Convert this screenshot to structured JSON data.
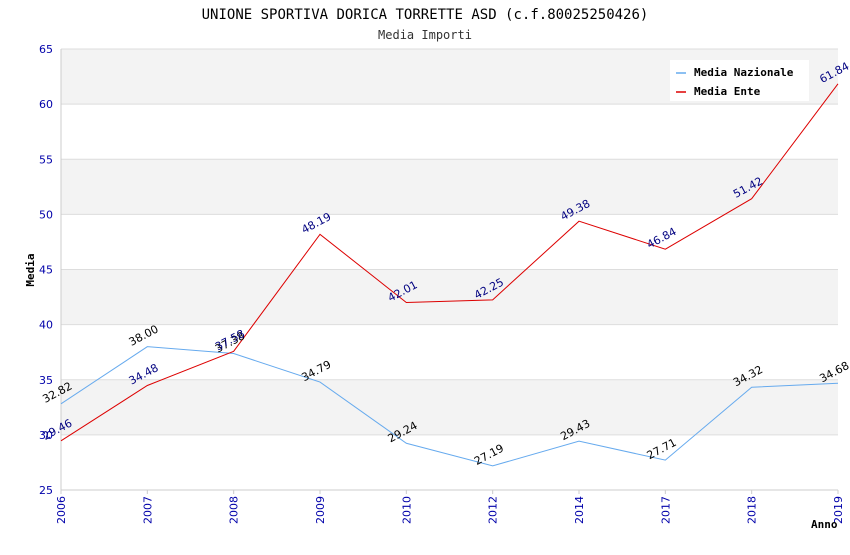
{
  "chart_data": {
    "type": "line",
    "title": "UNIONE SPORTIVA DORICA TORRETTE ASD (c.f.80025250426)",
    "subtitle": "Media Importi",
    "xlabel": "Anno",
    "ylabel": "Media",
    "ylim": [
      25,
      65
    ],
    "yticks": [
      "25",
      "30",
      "35",
      "40",
      "45",
      "50",
      "55",
      "60",
      "65"
    ],
    "categories": [
      "2006",
      "2007",
      "2008",
      "2009",
      "2010",
      "2012",
      "2014",
      "2017",
      "2018",
      "2019"
    ],
    "grid": true,
    "legend_position": "top-right",
    "series": [
      {
        "name": "Media Nazionale",
        "color": "#66aaee",
        "label_color": "#000000",
        "values": [
          32.82,
          38.0,
          37.38,
          34.79,
          29.24,
          27.19,
          29.43,
          27.71,
          34.32,
          34.68
        ],
        "labels": [
          "32.82",
          "38.00",
          "37.38",
          "34.79",
          "29.24",
          "27.19",
          "29.43",
          "27.71",
          "34.32",
          "34.68"
        ]
      },
      {
        "name": "Media Ente",
        "color": "#dd0000",
        "label_color": "#000080",
        "values": [
          29.46,
          34.48,
          37.58,
          48.19,
          42.01,
          42.25,
          49.38,
          46.84,
          51.42,
          61.84
        ],
        "labels": [
          "29.46",
          "34.48",
          "37.58",
          "48.19",
          "42.01",
          "42.25",
          "49.38",
          "46.84",
          "51.42",
          "61.84"
        ]
      }
    ]
  }
}
